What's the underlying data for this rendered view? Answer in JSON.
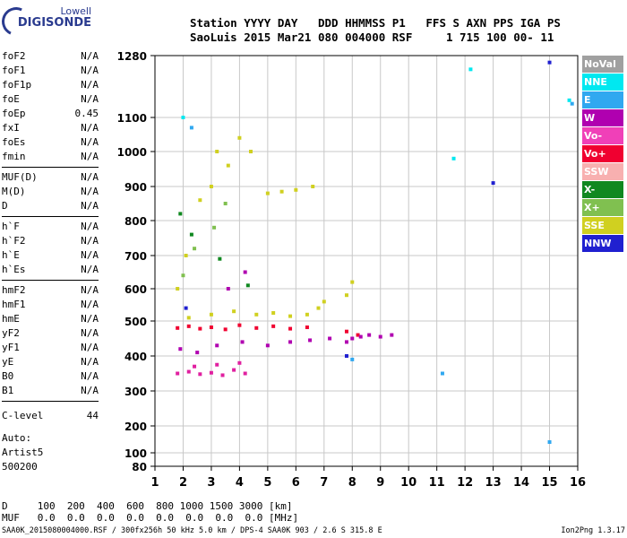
{
  "logo": {
    "line1": "Lowell",
    "line2": "DIGISONDE"
  },
  "station": {
    "header": "Station YYYY DAY   DDD HHMMSS P1   FFS S AXN PPS IGA PS",
    "values": "SaoLuis 2015 Mar21 080 004000 RSF     1 715 100 00- 11"
  },
  "params": [
    {
      "group": [
        {
          "name": "foF2",
          "value": "N/A"
        },
        {
          "name": "foF1",
          "value": "N/A"
        },
        {
          "name": "foF1p",
          "value": "N/A"
        },
        {
          "name": "foE",
          "value": "N/A"
        },
        {
          "name": "foEp",
          "value": "0.45"
        },
        {
          "name": "fxI",
          "value": "N/A"
        },
        {
          "name": "foEs",
          "value": "N/A"
        },
        {
          "name": "fmin",
          "value": "N/A"
        }
      ]
    },
    {
      "group": [
        {
          "name": "MUF(D)",
          "value": "N/A"
        },
        {
          "name": "M(D)",
          "value": "N/A"
        },
        {
          "name": "D",
          "value": "N/A"
        }
      ]
    },
    {
      "group": [
        {
          "name": "h`F",
          "value": "N/A"
        },
        {
          "name": "h`F2",
          "value": "N/A"
        },
        {
          "name": "h`E",
          "value": "N/A"
        },
        {
          "name": "h`Es",
          "value": "N/A"
        }
      ]
    },
    {
      "group": [
        {
          "name": "hmF2",
          "value": "N/A"
        },
        {
          "name": "hmF1",
          "value": "N/A"
        },
        {
          "name": "hmE",
          "value": "N/A"
        },
        {
          "name": "yF2",
          "value": "N/A"
        },
        {
          "name": "yF1",
          "value": "N/A"
        },
        {
          "name": "yE",
          "value": "N/A"
        },
        {
          "name": "B0",
          "value": "N/A"
        },
        {
          "name": "B1",
          "value": "N/A"
        }
      ]
    }
  ],
  "clevel": {
    "name": "C-level",
    "value": "44"
  },
  "auto": {
    "line1": "Auto:",
    "line2": "Artist5",
    "line3": "500200"
  },
  "dtable": {
    "row1": "D     100  200  400  600  800 1000 1500 3000 [km]",
    "row2": "MUF   0.0  0.0  0.0  0.0  0.0  0.0  0.0  0.0 [MHz]"
  },
  "footer": {
    "left": "SAA0K_2015080004000.RSF / 300fx256h 50 kHz 5.0 km / DPS-4 SAA0K 903 / 2.6 S 315.8 E",
    "right": "Ion2Png 1.3.17"
  },
  "legend": [
    {
      "label": "NoVal",
      "color": "#a0a0a0"
    },
    {
      "label": "NNE",
      "color": "#00e8f0"
    },
    {
      "label": "E",
      "color": "#30a8f0"
    },
    {
      "label": "W",
      "color": "#b000b0"
    },
    {
      "label": "Vo-",
      "color": "#f040b8"
    },
    {
      "label": "Vo+",
      "color": "#f00030"
    },
    {
      "label": "SSW",
      "color": "#f8b0b0"
    },
    {
      "label": "X-",
      "color": "#108820"
    },
    {
      "label": "X+",
      "color": "#80c050"
    },
    {
      "label": "SSE",
      "color": "#d0d020"
    },
    {
      "label": "NNW",
      "color": "#2020d0"
    }
  ],
  "chart_data": {
    "type": "scatter",
    "xlabel": "",
    "ylabel": "",
    "xlim": [
      1,
      16
    ],
    "ylim": [
      80,
      1280
    ],
    "x_ticks": [
      "1",
      "2",
      "3",
      "4",
      "5",
      "6",
      "7",
      "8",
      "9",
      "10",
      "11",
      "12",
      "13",
      "14",
      "15",
      "16"
    ],
    "y_ticks": [
      {
        "value": 80,
        "label": "80"
      },
      {
        "value": 100,
        "label": "100"
      },
      {
        "value": 200,
        "label": "200"
      },
      {
        "value": 300,
        "label": "300"
      },
      {
        "value": 400,
        "label": "400"
      },
      {
        "value": 500,
        "label": "500"
      },
      {
        "value": 600,
        "label": "600"
      },
      {
        "value": 700,
        "label": "700"
      },
      {
        "value": 800,
        "label": "800"
      },
      {
        "value": 900,
        "label": "900"
      },
      {
        "value": 1000,
        "label": "1000"
      },
      {
        "value": 1100,
        "label": "1100"
      },
      {
        "value": 1280,
        "label": "1280"
      }
    ],
    "grid": true,
    "series": [
      {
        "name": "Vo-",
        "color": "#e020a0",
        "points": [
          [
            1.8,
            350
          ],
          [
            2.2,
            355
          ],
          [
            2.6,
            348
          ],
          [
            3.0,
            352
          ],
          [
            3.4,
            345
          ],
          [
            3.8,
            360
          ],
          [
            4.2,
            350
          ],
          [
            2.4,
            370
          ],
          [
            3.2,
            375
          ],
          [
            4.0,
            380
          ]
        ]
      },
      {
        "name": "Vo+",
        "color": "#f00030",
        "points": [
          [
            1.8,
            480
          ],
          [
            2.2,
            485
          ],
          [
            2.6,
            478
          ],
          [
            3.0,
            482
          ],
          [
            3.5,
            476
          ],
          [
            4.0,
            488
          ],
          [
            4.6,
            480
          ],
          [
            5.2,
            485
          ],
          [
            5.8,
            478
          ],
          [
            6.4,
            482
          ],
          [
            7.8,
            470
          ],
          [
            8.2,
            460
          ]
        ]
      },
      {
        "name": "W",
        "color": "#b000b0",
        "points": [
          [
            1.9,
            420
          ],
          [
            2.5,
            410
          ],
          [
            3.2,
            430
          ],
          [
            4.1,
            440
          ],
          [
            5.0,
            430
          ],
          [
            5.8,
            440
          ],
          [
            6.5,
            445
          ],
          [
            7.2,
            450
          ],
          [
            7.8,
            440
          ],
          [
            8.0,
            450
          ],
          [
            8.3,
            455
          ],
          [
            8.6,
            460
          ],
          [
            9.0,
            455
          ],
          [
            9.4,
            460
          ],
          [
            3.6,
            600
          ],
          [
            4.2,
            650
          ]
        ]
      },
      {
        "name": "SSE",
        "color": "#d0d020",
        "points": [
          [
            2.2,
            510
          ],
          [
            3.0,
            520
          ],
          [
            3.8,
            530
          ],
          [
            4.6,
            520
          ],
          [
            5.2,
            525
          ],
          [
            5.8,
            515
          ],
          [
            6.4,
            520
          ],
          [
            6.8,
            540
          ],
          [
            7.0,
            560
          ],
          [
            7.8,
            580
          ],
          [
            8.0,
            620
          ],
          [
            5.0,
            880
          ],
          [
            5.5,
            885
          ],
          [
            6.0,
            890
          ],
          [
            6.6,
            900
          ],
          [
            3.2,
            1000
          ],
          [
            3.6,
            960
          ],
          [
            4.0,
            1040
          ],
          [
            4.4,
            1000
          ],
          [
            2.6,
            860
          ],
          [
            3.0,
            900
          ],
          [
            1.8,
            600
          ],
          [
            2.1,
            700
          ]
        ]
      },
      {
        "name": "X+",
        "color": "#80c050",
        "points": [
          [
            2.0,
            640
          ],
          [
            2.4,
            720
          ],
          [
            3.1,
            780
          ],
          [
            3.5,
            850
          ]
        ]
      },
      {
        "name": "X-",
        "color": "#108820",
        "points": [
          [
            1.9,
            820
          ],
          [
            2.3,
            760
          ],
          [
            3.3,
            690
          ],
          [
            4.3,
            610
          ]
        ]
      },
      {
        "name": "E",
        "color": "#30a8f0",
        "points": [
          [
            2.3,
            1070
          ],
          [
            8.0,
            390
          ],
          [
            11.2,
            350
          ],
          [
            15.0,
            140
          ],
          [
            15.8,
            1140
          ]
        ]
      },
      {
        "name": "NNW",
        "color": "#2020d0",
        "points": [
          [
            15.0,
            1260
          ],
          [
            13.0,
            910
          ],
          [
            7.8,
            400
          ],
          [
            2.1,
            540
          ]
        ]
      },
      {
        "name": "NNE",
        "color": "#00e8f0",
        "points": [
          [
            15.7,
            1150
          ],
          [
            11.6,
            980
          ],
          [
            12.2,
            1240
          ],
          [
            2.0,
            1100
          ]
        ]
      }
    ]
  }
}
